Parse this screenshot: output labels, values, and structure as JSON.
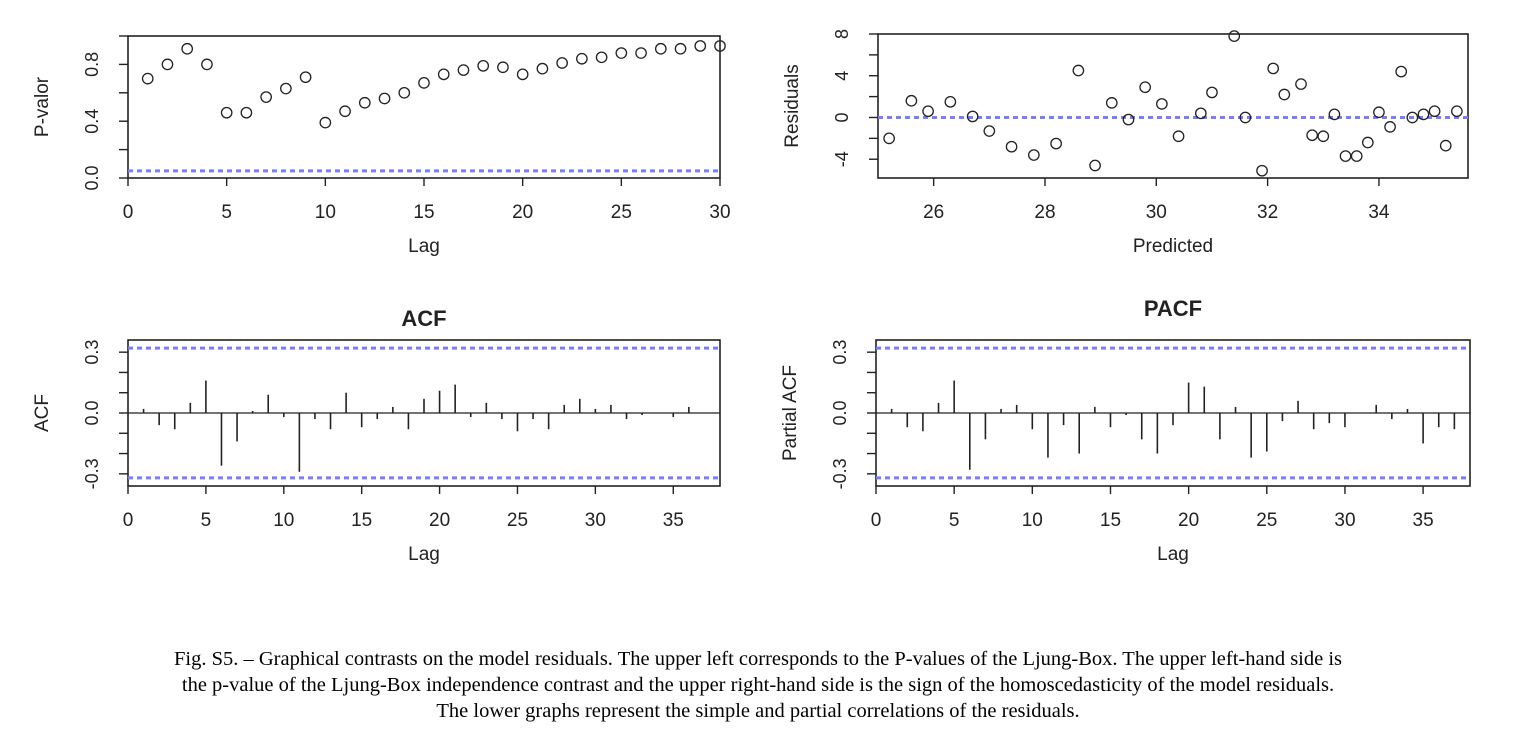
{
  "caption": {
    "line1": "Fig. S5. – Graphical contrasts on the model residuals. The upper left corresponds to the P-values of the Ljung-Box. The upper left-hand side is",
    "line2": "the p-value of the Ljung-Box independence contrast and the upper right-hand side is the sign of the homoscedasticity of the model residuals.",
    "line3": "The lower graphs represent the simple and partial correlations of the residuals."
  },
  "colors": {
    "ref_line": "#7b7bff",
    "ink": "#222222"
  },
  "chart_data": [
    {
      "id": "pvalues",
      "type": "scatter",
      "title": "",
      "xlabel": "Lag",
      "ylabel": "P-valor",
      "xlim": [
        0,
        30
      ],
      "ylim": [
        0.0,
        1.0
      ],
      "xticks": [
        0,
        5,
        10,
        15,
        20,
        25,
        30
      ],
      "xtick_labels": [
        "0",
        "5",
        "10",
        "15",
        "20",
        "25",
        "30"
      ],
      "yticks": [
        0.0,
        0.4,
        0.8
      ],
      "ytick_labels": [
        "0.0",
        "0.4",
        "0.8"
      ],
      "minor_yticks": [
        0.2,
        0.6,
        1.0
      ],
      "ref_lines": [
        0.05
      ],
      "x": [
        1,
        2,
        3,
        4,
        5,
        6,
        7,
        8,
        9,
        10,
        11,
        12,
        13,
        14,
        15,
        16,
        17,
        18,
        19,
        20,
        21,
        22,
        23,
        24,
        25,
        26,
        27,
        28,
        29,
        30
      ],
      "y": [
        0.7,
        0.8,
        0.91,
        0.8,
        0.46,
        0.46,
        0.57,
        0.63,
        0.71,
        0.39,
        0.47,
        0.53,
        0.56,
        0.6,
        0.67,
        0.73,
        0.76,
        0.79,
        0.78,
        0.73,
        0.77,
        0.81,
        0.84,
        0.85,
        0.88,
        0.88,
        0.91,
        0.91,
        0.93,
        0.93
      ]
    },
    {
      "id": "residuals",
      "type": "scatter",
      "title": "",
      "xlabel": "Predicted",
      "ylabel": "Residuals",
      "xlim": [
        25.0,
        35.6
      ],
      "ylim": [
        -5.8,
        8.0
      ],
      "xticks": [
        26,
        28,
        30,
        32,
        34
      ],
      "xtick_labels": [
        "26",
        "28",
        "30",
        "32",
        "34"
      ],
      "yticks": [
        -4,
        0,
        4,
        8
      ],
      "ytick_labels": [
        "-4",
        "0",
        "4",
        "8"
      ],
      "minor_yticks": [
        -2,
        2,
        6
      ],
      "ref_lines": [
        0
      ],
      "x": [
        25.2,
        25.6,
        25.9,
        26.3,
        26.7,
        27.0,
        27.4,
        27.8,
        28.2,
        28.6,
        28.9,
        29.2,
        29.5,
        29.8,
        30.1,
        30.4,
        30.8,
        31.0,
        31.4,
        31.6,
        31.9,
        32.1,
        32.3,
        32.6,
        32.8,
        33.0,
        33.2,
        33.4,
        33.6,
        33.8,
        34.0,
        34.2,
        34.4,
        34.6,
        34.8,
        35.0,
        35.2,
        35.4
      ],
      "y": [
        -2.0,
        1.6,
        0.6,
        1.5,
        0.1,
        -1.3,
        -2.8,
        -3.6,
        -2.5,
        4.5,
        -4.6,
        1.4,
        -0.2,
        2.9,
        1.3,
        -1.8,
        0.4,
        2.4,
        7.8,
        0.0,
        -5.1,
        4.7,
        2.2,
        3.2,
        -1.7,
        -1.8,
        0.3,
        -3.7,
        -3.7,
        -2.4,
        0.5,
        -0.9,
        4.4,
        0.0,
        0.3,
        0.6,
        -2.7,
        0.6
      ]
    },
    {
      "id": "acf",
      "type": "bar",
      "title": "ACF",
      "xlabel": "Lag",
      "ylabel": "ACF",
      "xlim": [
        0,
        38
      ],
      "ylim": [
        -0.36,
        0.36
      ],
      "xticks": [
        0,
        5,
        10,
        15,
        20,
        25,
        30,
        35
      ],
      "xtick_labels": [
        "0",
        "5",
        "10",
        "15",
        "20",
        "25",
        "30",
        "35"
      ],
      "yticks": [
        -0.3,
        0.0,
        0.3
      ],
      "ytick_labels": [
        "-0.3",
        "0.0",
        "0.3"
      ],
      "minor_yticks": [
        -0.2,
        -0.1,
        0.1,
        0.2
      ],
      "ref_lines": [
        0.32,
        -0.32
      ],
      "x": [
        1,
        2,
        3,
        4,
        5,
        6,
        7,
        8,
        9,
        10,
        11,
        12,
        13,
        14,
        15,
        16,
        17,
        18,
        19,
        20,
        21,
        22,
        23,
        24,
        25,
        26,
        27,
        28,
        29,
        30,
        31,
        32,
        33,
        34,
        35,
        36,
        37
      ],
      "values": [
        0.02,
        -0.06,
        -0.08,
        0.05,
        0.16,
        -0.26,
        -0.14,
        0.01,
        0.09,
        -0.02,
        -0.29,
        -0.03,
        -0.08,
        0.1,
        -0.07,
        -0.03,
        0.03,
        -0.08,
        0.07,
        0.11,
        0.14,
        -0.02,
        0.05,
        -0.03,
        -0.09,
        -0.03,
        -0.08,
        0.04,
        0.07,
        0.02,
        0.04,
        -0.03,
        -0.01,
        0.0,
        -0.02,
        0.03,
        0.0
      ]
    },
    {
      "id": "pacf",
      "type": "bar",
      "title": "PACF",
      "xlabel": "Lag",
      "ylabel": "Partial ACF",
      "xlim": [
        0,
        38
      ],
      "ylim": [
        -0.36,
        0.36
      ],
      "xticks": [
        0,
        5,
        10,
        15,
        20,
        25,
        30,
        35
      ],
      "xtick_labels": [
        "0",
        "5",
        "10",
        "15",
        "20",
        "25",
        "30",
        "35"
      ],
      "yticks": [
        -0.3,
        0.0,
        0.3
      ],
      "ytick_labels": [
        "-0.3",
        "0.0",
        "0.3"
      ],
      "minor_yticks": [
        -0.2,
        -0.1,
        0.1,
        0.2
      ],
      "ref_lines": [
        0.32,
        -0.32
      ],
      "x": [
        1,
        2,
        3,
        4,
        5,
        6,
        7,
        8,
        9,
        10,
        11,
        12,
        13,
        14,
        15,
        16,
        17,
        18,
        19,
        20,
        21,
        22,
        23,
        24,
        25,
        26,
        27,
        28,
        29,
        30,
        31,
        32,
        33,
        34,
        35,
        36,
        37
      ],
      "values": [
        0.02,
        -0.07,
        -0.09,
        0.05,
        0.16,
        -0.28,
        -0.13,
        0.02,
        0.04,
        -0.08,
        -0.22,
        -0.06,
        -0.2,
        0.03,
        -0.07,
        -0.01,
        -0.13,
        -0.2,
        -0.06,
        0.15,
        0.13,
        -0.13,
        0.03,
        -0.22,
        -0.19,
        -0.04,
        0.06,
        -0.08,
        -0.05,
        -0.07,
        0.0,
        0.04,
        -0.03,
        0.02,
        -0.15,
        -0.07,
        -0.08
      ]
    }
  ]
}
